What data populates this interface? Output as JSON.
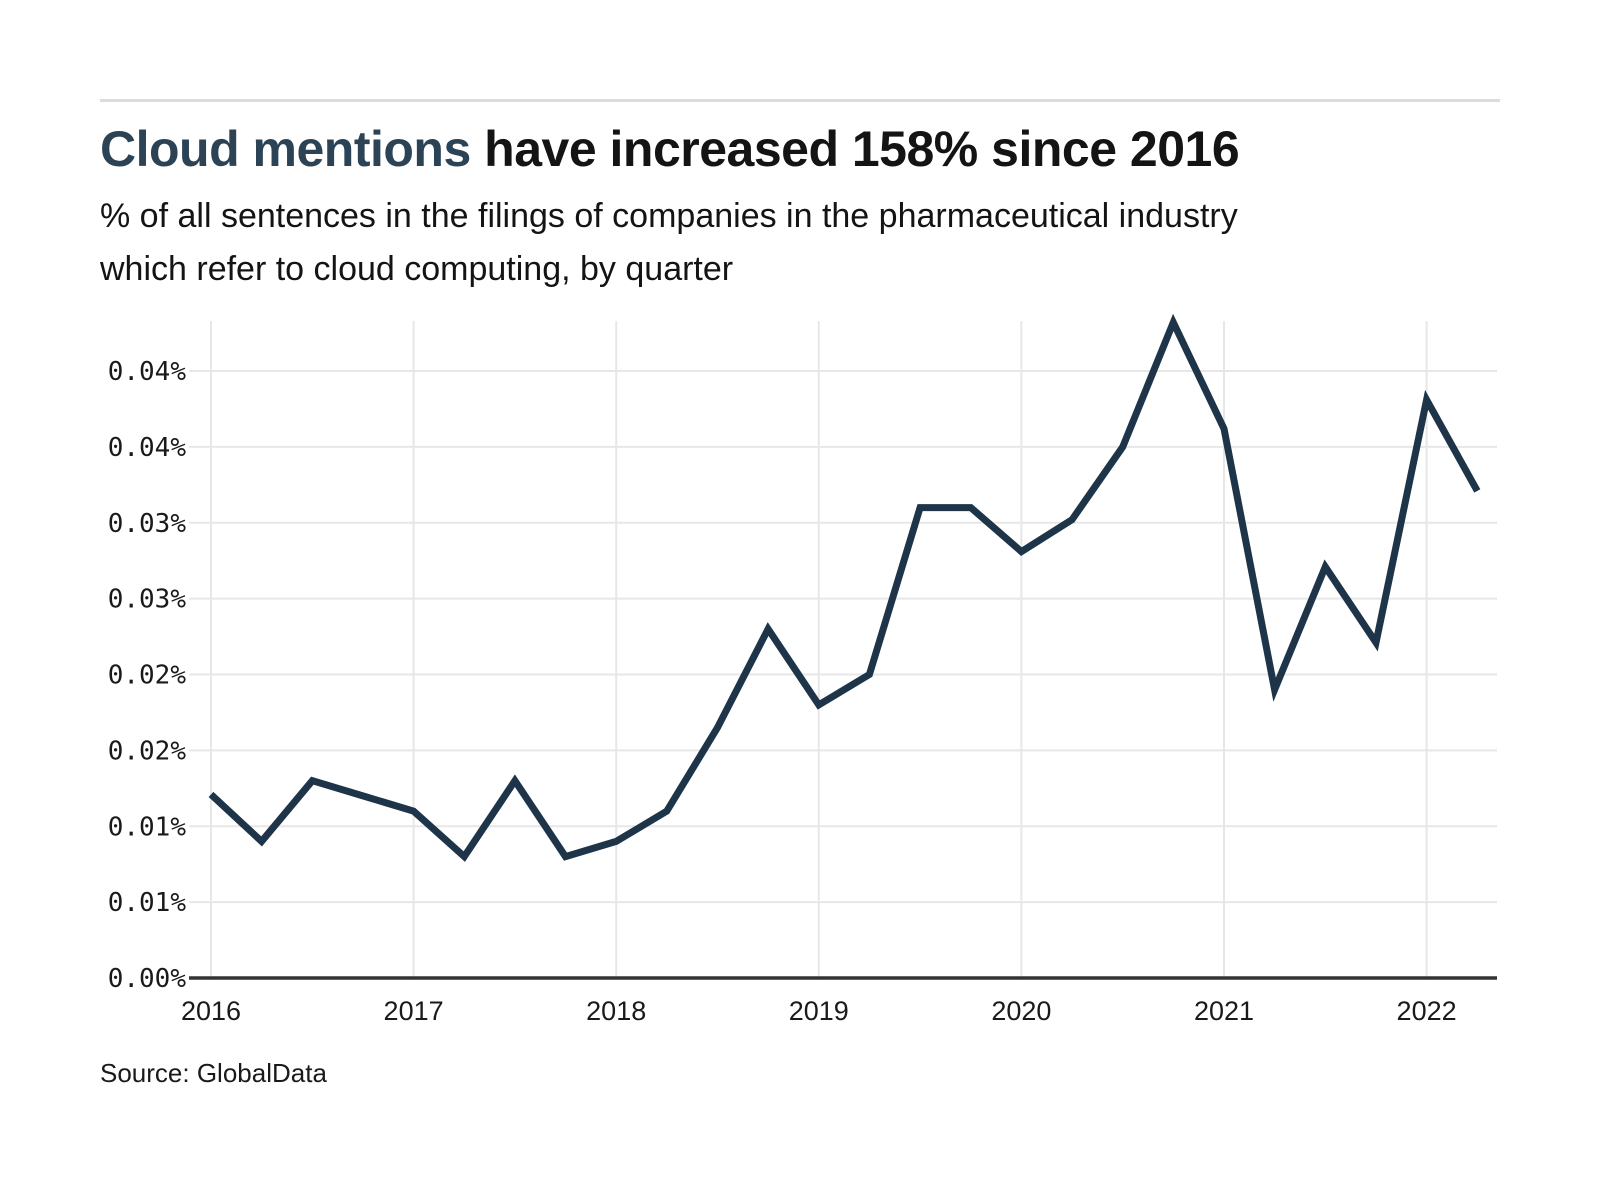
{
  "page": {
    "title_highlight": "Cloud mentions",
    "title_rest": " have increased 158% since 2016",
    "subtitle_line1": "% of all sentences in the filings of companies in the pharmaceutical industry",
    "subtitle_line2": "which refer to cloud computing, by quarter",
    "source": "Source: GlobalData"
  },
  "colors": {
    "title_highlight": "#2c4356",
    "text": "#141414",
    "line": "#1e3448",
    "grid": "#e7e7e7",
    "axis": "#333333",
    "divider": "#dcdcdc",
    "tick_text": "#1a1a1a"
  },
  "chart_data": {
    "type": "line",
    "title": "Cloud mentions have increased 158% since 2016",
    "subtitle": "% of all sentences in the filings of companies in the pharmaceutical industry which refer to cloud computing, by quarter",
    "unit": "percent of sentences",
    "x": [
      "2016 Q1",
      "2016 Q2",
      "2016 Q3",
      "2016 Q4",
      "2017 Q1",
      "2017 Q2",
      "2017 Q3",
      "2017 Q4",
      "2018 Q1",
      "2018 Q2",
      "2018 Q3",
      "2018 Q4",
      "2019 Q1",
      "2019 Q2",
      "2019 Q3",
      "2019 Q4",
      "2020 Q1",
      "2020 Q2",
      "2020 Q3",
      "2020 Q4",
      "2021 Q1",
      "2021 Q2",
      "2021 Q3",
      "2021 Q4",
      "2022 Q1",
      "2022 Q2"
    ],
    "values": [
      0.0121,
      0.009,
      0.013,
      0.012,
      0.011,
      0.008,
      0.013,
      0.008,
      0.009,
      0.011,
      0.0165,
      0.023,
      0.018,
      0.02,
      0.031,
      0.031,
      0.0281,
      0.0302,
      0.035,
      0.0432,
      0.0362,
      0.019,
      0.0271,
      0.0221,
      0.0381,
      0.0321
    ],
    "x_tick_labels": [
      "2016",
      "2017",
      "2018",
      "2019",
      "2020",
      "2021",
      "2022"
    ],
    "y_tick_values": [
      0,
      0.005,
      0.01,
      0.015,
      0.02,
      0.025,
      0.03,
      0.035,
      0.04
    ],
    "y_tick_labels": [
      "0.00%",
      "0.01%",
      "0.01%",
      "0.02%",
      "0.02%",
      "0.03%",
      "0.03%",
      "0.04%",
      "0.04%"
    ],
    "ylim": [
      0,
      0.0445
    ],
    "xlabel": "",
    "ylabel": "",
    "grid": "both",
    "legend": "none",
    "source": "GlobalData"
  }
}
